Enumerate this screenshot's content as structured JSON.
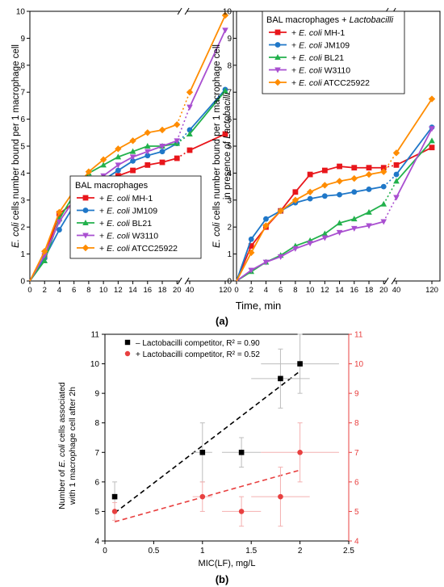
{
  "panel_a": {
    "caption": "(a)",
    "shared_xlabel": "Time, min",
    "x_ticks": [
      "0",
      "2",
      "4",
      "6",
      "8",
      "10",
      "12",
      "14",
      "16",
      "18",
      "20",
      "40",
      "120"
    ],
    "colors": {
      "MH-1": "#e8161b",
      "JM109": "#1f77c8",
      "BL21": "#22b14c",
      "W3110": "#a94fd0",
      "ATCC25922": "#ff8c00"
    }
  },
  "panel_b": {
    "caption": "(b)",
    "legend_items": [
      {
        "label": "– Lactobacilli competitor, R² = 0.90",
        "color": "#000000"
      },
      {
        "label": "+ Lactobacilli competitor, R² = 0.52",
        "color": "#e84040"
      }
    ]
  },
  "chart_data": [
    {
      "type": "line",
      "ylabel": "E. coli cells number bound per 1 macrophage cell",
      "xlabel": "Time, min",
      "x": [
        0,
        2,
        4,
        6,
        8,
        10,
        12,
        14,
        16,
        18,
        20,
        40,
        120
      ],
      "x_axis_break": "between 20 and 40",
      "ylim": [
        0,
        10
      ],
      "y_ticks": [
        0,
        1,
        2,
        3,
        4,
        5,
        6,
        7,
        8,
        9,
        10
      ],
      "legend_title": "BAL macrophages",
      "legend_position": "bottom-right",
      "series": [
        {
          "name": "+ E. coli MH-1",
          "prefix": "+ ",
          "italic": "E. coli",
          "suffix": " MH-1",
          "color": "#e8161b",
          "marker": "square",
          "values": [
            0,
            0.9,
            2.5,
            2.9,
            3.3,
            3.6,
            3.9,
            4.1,
            4.3,
            4.4,
            4.55,
            4.85,
            5.45
          ]
        },
        {
          "name": "+ E. coli JM109",
          "prefix": "+ ",
          "italic": "E. coli",
          "suffix": " JM109",
          "color": "#1f77c8",
          "marker": "circle",
          "values": [
            0,
            0.85,
            1.9,
            2.8,
            3.35,
            3.75,
            4.1,
            4.45,
            4.65,
            4.8,
            5.1,
            5.6,
            7.1
          ]
        },
        {
          "name": "+ E. coli BL21",
          "prefix": "+ ",
          "italic": "E. coli",
          "suffix": " BL21",
          "color": "#22b14c",
          "marker": "triangle-up",
          "values": [
            0,
            0.75,
            2.3,
            3.2,
            4.0,
            4.3,
            4.6,
            4.8,
            5.0,
            5.0,
            5.1,
            5.45,
            7.05
          ]
        },
        {
          "name": "+ E. coli W3110",
          "prefix": "+ ",
          "italic": "E. coli",
          "suffix": " W3110",
          "color": "#a94fd0",
          "marker": "triangle-down",
          "values": [
            0,
            0.95,
            2.2,
            3.0,
            3.5,
            3.9,
            4.3,
            4.6,
            4.8,
            5.0,
            5.2,
            6.45,
            9.3
          ]
        },
        {
          "name": "+ E. coli ATCC25922",
          "prefix": "+ ",
          "italic": "E. coli",
          "suffix": " ATCC25922",
          "color": "#ff8c00",
          "marker": "diamond",
          "values": [
            0,
            1.1,
            2.55,
            3.35,
            4.05,
            4.5,
            4.9,
            5.2,
            5.5,
            5.6,
            5.8,
            7.0,
            9.85
          ]
        }
      ]
    },
    {
      "type": "line",
      "ylabel": "E. coli cells number bound per 1 macrophage cell in presence of Lactobacilli",
      "xlabel": "Time, min",
      "x": [
        0,
        2,
        4,
        6,
        8,
        10,
        12,
        14,
        16,
        18,
        20,
        40,
        120
      ],
      "x_axis_break": "between 20 and 40",
      "ylim": [
        0,
        10
      ],
      "y_ticks": [
        0,
        1,
        2,
        3,
        4,
        5,
        6,
        7,
        8,
        9,
        10
      ],
      "legend_title": "BAL macrophages + Lactobacilli",
      "legend_position": "top-right",
      "series": [
        {
          "name": "+ E. coli MH-1",
          "prefix": "+ ",
          "italic": "E. coli",
          "suffix": " MH-1",
          "color": "#e8161b",
          "marker": "square",
          "values": [
            0,
            1.3,
            2.0,
            2.6,
            3.3,
            3.95,
            4.1,
            4.25,
            4.2,
            4.2,
            4.2,
            4.3,
            4.95
          ]
        },
        {
          "name": "+ E. coli JM109",
          "prefix": "+ ",
          "italic": "E. coli",
          "suffix": " JM109",
          "color": "#1f77c8",
          "marker": "circle",
          "values": [
            0,
            1.55,
            2.3,
            2.6,
            2.9,
            3.05,
            3.15,
            3.2,
            3.3,
            3.4,
            3.5,
            3.95,
            5.7
          ]
        },
        {
          "name": "+ E. coli BL21",
          "prefix": "+ ",
          "italic": "E. coli",
          "suffix": " BL21",
          "color": "#22b14c",
          "marker": "triangle-up",
          "values": [
            0,
            0.35,
            0.7,
            0.95,
            1.3,
            1.5,
            1.75,
            2.15,
            2.3,
            2.55,
            2.85,
            3.7,
            5.2
          ]
        },
        {
          "name": "+ E. coli W3110",
          "prefix": "+ ",
          "italic": "E. coli",
          "suffix": " W3110",
          "color": "#a94fd0",
          "marker": "triangle-down",
          "values": [
            0,
            0.4,
            0.7,
            0.9,
            1.2,
            1.4,
            1.6,
            1.8,
            1.95,
            2.05,
            2.2,
            3.1,
            5.65
          ]
        },
        {
          "name": "+ E. coli ATCC25922",
          "prefix": "+ ",
          "italic": "E. coli",
          "suffix": " ATCC25922",
          "color": "#ff8c00",
          "marker": "diamond",
          "values": [
            0,
            1.05,
            2.05,
            2.6,
            3.0,
            3.3,
            3.55,
            3.7,
            3.8,
            3.95,
            4.05,
            4.75,
            6.75
          ]
        }
      ]
    },
    {
      "type": "scatter",
      "xlabel": "MIC(LF), mg/L",
      "ylabel": "Number of E. coli cells associated with 1 macrophage cell after 2h",
      "xlim": [
        0,
        2.5
      ],
      "x_ticks": [
        "0",
        "0.5",
        "1",
        "1.5",
        "2",
        "2.5"
      ],
      "x_tick_values": [
        0,
        0.5,
        1,
        1.5,
        2,
        2.5
      ],
      "ylim": [
        4,
        11
      ],
      "y_ticks": [
        4,
        5,
        6,
        7,
        8,
        9,
        10,
        11
      ],
      "right_ylim": [
        4,
        11
      ],
      "right_y_ticks": [
        4,
        5,
        6,
        7,
        8,
        9,
        10,
        11
      ],
      "right_axis_color": "#e84040",
      "legend_position": "top-left",
      "series": [
        {
          "name": "– Lactobacilli competitor, R² = 0.90",
          "color": "#000000",
          "marker": "square",
          "points": [
            {
              "x": 0.1,
              "y": 5.5,
              "xerr": 0,
              "yerr": 0.5
            },
            {
              "x": 1.0,
              "y": 7.0,
              "xerr": 0.1,
              "yerr": 1.0
            },
            {
              "x": 1.4,
              "y": 7.0,
              "xerr": 0.2,
              "yerr": 0.5
            },
            {
              "x": 1.8,
              "y": 9.5,
              "xerr": 0.3,
              "yerr": 1.0
            },
            {
              "x": 2.0,
              "y": 10.0,
              "xerr": 0.4,
              "yerr": 1.0
            }
          ],
          "trend": [
            [
              0.1,
              4.95
            ],
            [
              2.0,
              9.75
            ]
          ]
        },
        {
          "name": "+ Lactobacilli competitor, R² = 0.52",
          "color": "#e84040",
          "marker": "circle",
          "points": [
            {
              "x": 0.1,
              "y": 5.0,
              "xerr": 0,
              "yerr": 0.3
            },
            {
              "x": 1.0,
              "y": 5.5,
              "xerr": 0.1,
              "yerr": 0.5
            },
            {
              "x": 1.4,
              "y": 5.0,
              "xerr": 0.2,
              "yerr": 0.5
            },
            {
              "x": 1.8,
              "y": 5.5,
              "xerr": 0.3,
              "yerr": 1.0
            },
            {
              "x": 2.0,
              "y": 7.0,
              "xerr": 0.4,
              "yerr": 1.0
            }
          ],
          "trend": [
            [
              0.1,
              4.65
            ],
            [
              2.0,
              6.4
            ]
          ]
        }
      ]
    }
  ]
}
